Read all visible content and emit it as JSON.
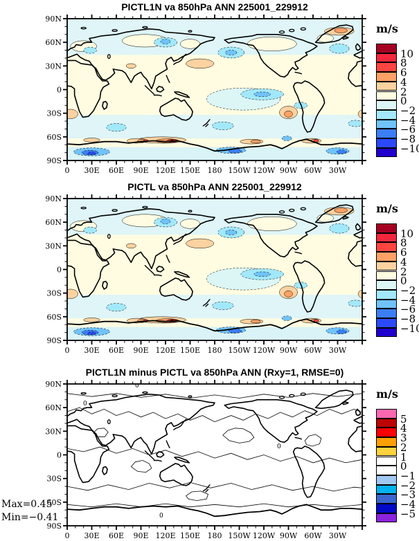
{
  "axes": {
    "lat_ticks": [
      "90N",
      "60N",
      "30N",
      "0",
      "30S",
      "60S",
      "90S"
    ],
    "lon_ticks": [
      "0",
      "30E",
      "60E",
      "90E",
      "120E",
      "150E",
      "180",
      "150W",
      "120W",
      "90W",
      "60W",
      "30W"
    ]
  },
  "chart_data": [
    {
      "type": "filled_contour_map",
      "title": "PICTL1N va 850hPa ANN 225001_229912",
      "units": "m/s",
      "level_labels": [
        "10",
        "8",
        "6",
        "4",
        "2",
        "0",
        "−2",
        "−4",
        "−6",
        "−8",
        "−10"
      ],
      "palette_top_to_bottom": [
        "#a50021",
        "#f4273c",
        "#ff4540",
        "#fea166",
        "#fbd2a0",
        "#fffce1",
        "#dcf6f6",
        "#a2e8fb",
        "#70c3f9",
        "#3b7ef5",
        "#2b49f8",
        "#1f00cc"
      ],
      "legend_position": "right",
      "grid": false
    },
    {
      "type": "filled_contour_map",
      "title": "PICTL va 850hPa ANN 225001_229912",
      "units": "m/s",
      "level_labels": [
        "10",
        "8",
        "6",
        "4",
        "2",
        "0",
        "−2",
        "−4",
        "−6",
        "−8",
        "−10"
      ],
      "palette_top_to_bottom": [
        "#a50021",
        "#f4273c",
        "#ff4540",
        "#fea166",
        "#fbd2a0",
        "#fffce1",
        "#dcf6f6",
        "#a2e8fb",
        "#70c3f9",
        "#3b7ef5",
        "#2b49f8",
        "#1f00cc"
      ],
      "legend_position": "right",
      "grid": false
    },
    {
      "type": "contour_map",
      "title": "PICTL1N minus PICTL va 850hPa ANN (Rxy=1, RMSE=0)",
      "units": "m/s",
      "level_labels": [
        "5",
        "4",
        "3",
        "2",
        "1",
        "0",
        "−1",
        "−2",
        "−3",
        "−4",
        "−5"
      ],
      "palette_top_to_bottom": [
        "#fc68b0",
        "#bc0404",
        "#fe0000",
        "#ffa000",
        "#fdd33e",
        "#ffffff",
        "#ffffff",
        "#a0c8f0",
        "#00b3ee",
        "#3a67cf",
        "#0009c6",
        "#8b22dd"
      ],
      "legend_position": "right",
      "grid": false,
      "stats": {
        "max_label": "Max=0.45",
        "min_label": "Min=−0.41"
      }
    }
  ]
}
